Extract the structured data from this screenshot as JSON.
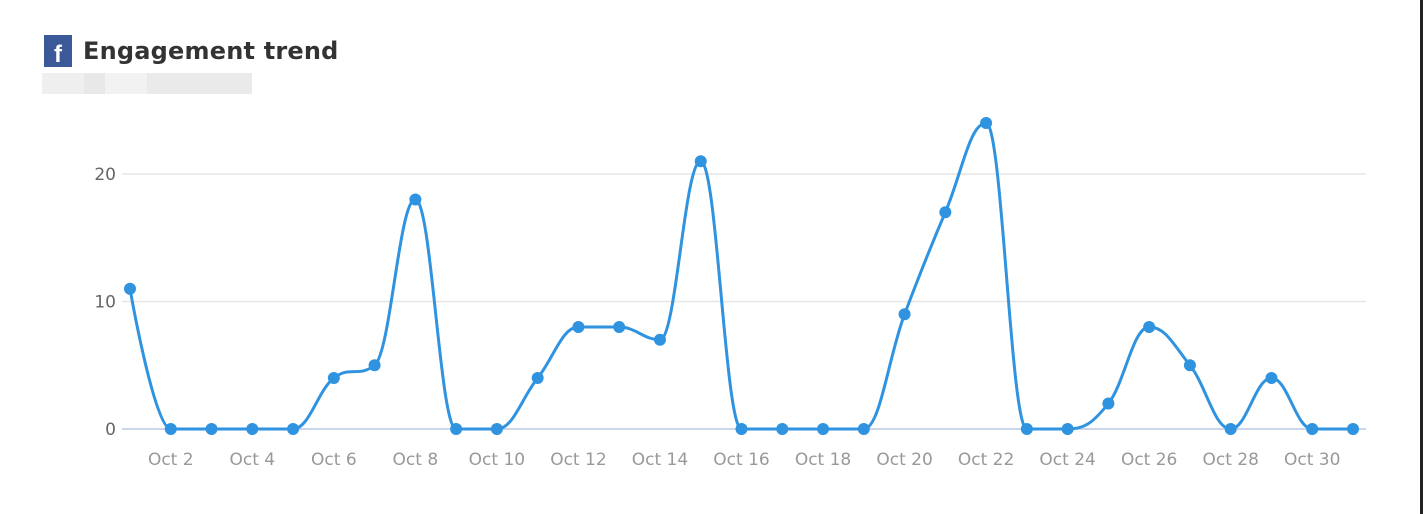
{
  "header": {
    "title": "Engagement trend",
    "icon": "facebook-icon",
    "icon_color": "#3b5998"
  },
  "chart_data": {
    "type": "line",
    "smooth": true,
    "title": "Engagement trend",
    "xlabel": "",
    "ylabel": "",
    "categories": [
      "Oct 1",
      "Oct 2",
      "Oct 3",
      "Oct 4",
      "Oct 5",
      "Oct 6",
      "Oct 7",
      "Oct 8",
      "Oct 9",
      "Oct 10",
      "Oct 11",
      "Oct 12",
      "Oct 13",
      "Oct 14",
      "Oct 15",
      "Oct 16",
      "Oct 17",
      "Oct 18",
      "Oct 19",
      "Oct 20",
      "Oct 21",
      "Oct 22",
      "Oct 23",
      "Oct 24",
      "Oct 25",
      "Oct 26",
      "Oct 27",
      "Oct 28",
      "Oct 29",
      "Oct 30",
      "Oct 31"
    ],
    "x_tick_labels": [
      "Oct 2",
      "Oct 4",
      "Oct 6",
      "Oct 8",
      "Oct 10",
      "Oct 12",
      "Oct 14",
      "Oct 16",
      "Oct 18",
      "Oct 20",
      "Oct 22",
      "Oct 24",
      "Oct 26",
      "Oct 28",
      "Oct 30"
    ],
    "values": [
      11,
      0,
      0,
      0,
      0,
      4,
      5,
      18,
      0,
      0,
      4,
      8,
      8,
      7,
      21,
      0,
      0,
      0,
      0,
      9,
      17,
      24,
      0,
      0,
      2,
      8,
      5,
      0,
      4,
      0,
      0
    ],
    "y_ticks": [
      "0",
      "10",
      "20"
    ],
    "ylim": [
      0,
      25
    ],
    "grid": true,
    "color": "#2f93e0"
  }
}
